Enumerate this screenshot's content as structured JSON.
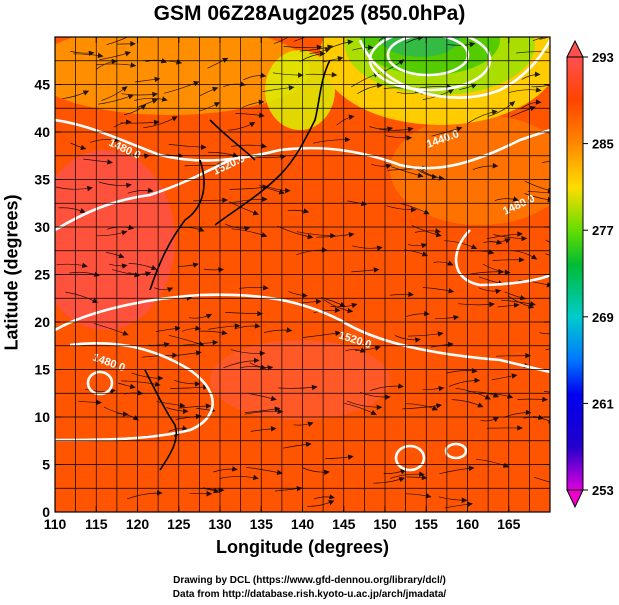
{
  "chart_data": {
    "type": "heatmap",
    "title": "GSM 06Z28Aug2025 (850.0hPa)",
    "xlabel": "Longitude (degrees)",
    "ylabel": "Latitude  (degrees)",
    "xlim": [
      110,
      170
    ],
    "ylim": [
      0,
      50
    ],
    "xticks": [
      110,
      115,
      120,
      125,
      130,
      135,
      140,
      145,
      150,
      155,
      160,
      165
    ],
    "yticks": [
      0,
      5,
      10,
      15,
      20,
      25,
      30,
      35,
      40,
      45
    ],
    "colorbar": {
      "min": 253,
      "max": 293,
      "ticks": [
        253,
        261,
        269,
        277,
        285,
        293
      ],
      "colors": [
        "#dd00dd",
        "#0000cc",
        "#0066ff",
        "#00cccc",
        "#00cc44",
        "#66dd00",
        "#dddd00",
        "#ffaa00",
        "#ff6600",
        "#ee2200",
        "#ff5050"
      ]
    },
    "contour_labels": [
      "1480.0",
      "1520.0",
      "1480.0",
      "1440.0",
      "1520.0",
      "1480.0"
    ],
    "credits": {
      "line1": "Drawing by DCL (https://www.gfd-dennou.org/library/dcl/)",
      "line2": "Data from http://database.rish.kyoto-u.ac.jp/arch/jmadata/"
    }
  }
}
